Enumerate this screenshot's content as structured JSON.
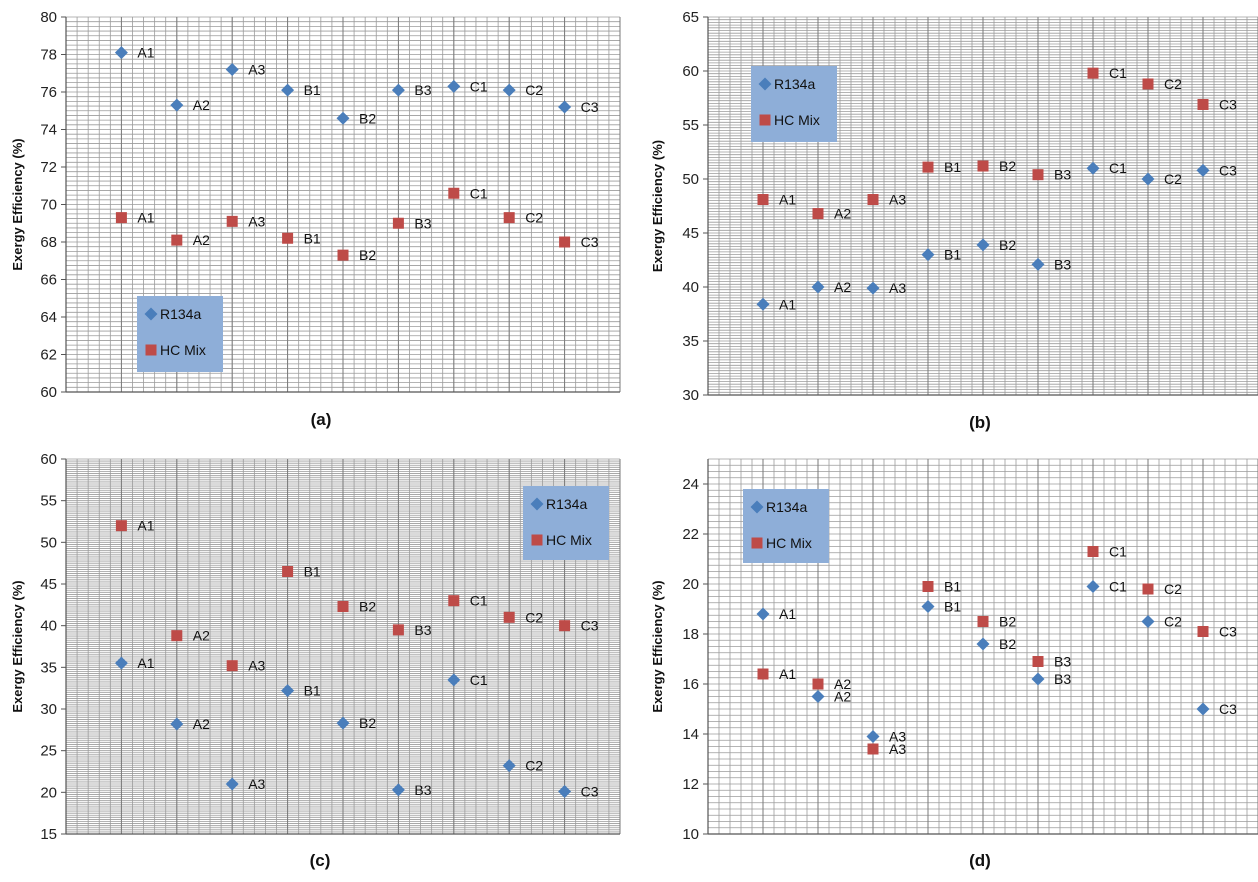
{
  "colors": {
    "r134a": "#4a7ebb",
    "hc": "#be4b48",
    "legend_bg": "#8eaed8",
    "grid": "#9b9b9b"
  },
  "chart_data": [
    {
      "type": "scatter",
      "caption": "(a)",
      "ylabel": "Exergy Efficiency  (%)",
      "ylim": [
        60,
        80
      ],
      "ytick_step": 2,
      "categories": [
        "A1",
        "A2",
        "A3",
        "B1",
        "B2",
        "B3",
        "C1",
        "C2",
        "C3"
      ],
      "legend": {
        "position": "bottom-left",
        "entries": [
          "R134a",
          "HC Mix"
        ]
      },
      "grid": true,
      "series": [
        {
          "name": "R134a",
          "marker": "diamond",
          "values": [
            78.1,
            75.3,
            77.2,
            76.1,
            74.6,
            76.1,
            76.3,
            76.1,
            75.2
          ],
          "labels": [
            "A1",
            "A2",
            "A3",
            "B1",
            "B2",
            "B3",
            "C1",
            "C2",
            "C3"
          ]
        },
        {
          "name": "HC Mix",
          "marker": "square",
          "values": [
            69.3,
            68.1,
            69.1,
            68.2,
            67.3,
            69.0,
            70.6,
            69.3,
            68.0
          ],
          "labels": [
            "A1",
            "A2",
            "A3",
            "B1",
            "B2",
            "B3",
            "C1",
            "C2",
            "C3"
          ]
        }
      ]
    },
    {
      "type": "scatter",
      "caption": "(b)",
      "ylabel": "Exergy Efficiency  (%)",
      "ylim": [
        30,
        65
      ],
      "ytick_step": 5,
      "categories": [
        "A1",
        "A2",
        "A3",
        "B1",
        "B2",
        "B3",
        "C1",
        "C2",
        "C3"
      ],
      "legend": {
        "position": "top-left",
        "entries": [
          "R134a",
          "HC Mix"
        ]
      },
      "grid": true,
      "series": [
        {
          "name": "R134a",
          "marker": "diamond",
          "values": [
            38.4,
            40.0,
            39.9,
            43.0,
            43.9,
            42.1,
            51.0,
            50.0,
            50.8
          ],
          "labels": [
            "A1",
            "A2",
            "A3",
            "B1",
            "B2",
            "B3",
            "C1",
            "C2",
            "C3"
          ]
        },
        {
          "name": "HC Mix",
          "marker": "square",
          "values": [
            48.1,
            46.8,
            48.1,
            51.1,
            51.2,
            50.4,
            59.8,
            58.8,
            56.9
          ],
          "labels": [
            "A1",
            "A2",
            "A3",
            "B1",
            "B2",
            "B3",
            "C1",
            "C2",
            "C3"
          ]
        }
      ]
    },
    {
      "type": "scatter",
      "caption": "(c)",
      "ylabel": "Exergy Efficiency  (%)",
      "ylim": [
        15,
        60
      ],
      "ytick_step": 5,
      "categories": [
        "A1",
        "A2",
        "A3",
        "B1",
        "B2",
        "B3",
        "C1",
        "C2",
        "C3"
      ],
      "legend": {
        "position": "top-right",
        "entries": [
          "R134a",
          "HC Mix"
        ]
      },
      "grid": true,
      "series": [
        {
          "name": "R134a",
          "marker": "diamond",
          "values": [
            35.5,
            28.2,
            21.0,
            32.2,
            28.3,
            20.3,
            33.5,
            23.2,
            20.1
          ],
          "labels": [
            "A1",
            "A2",
            "A3",
            "B1",
            "B2",
            "B3",
            "C1",
            "C2",
            "C3"
          ]
        },
        {
          "name": "HC Mix",
          "marker": "square",
          "values": [
            52.0,
            38.8,
            35.2,
            46.5,
            42.3,
            39.5,
            43.0,
            41.0,
            40.0
          ],
          "labels": [
            "A1",
            "A2",
            "A3",
            "B1",
            "B2",
            "B3",
            "C1",
            "C2",
            "C3"
          ]
        }
      ]
    },
    {
      "type": "scatter",
      "caption": "(d)",
      "ylabel": "Exergy Efficiency  (%)",
      "ylim": [
        10,
        25
      ],
      "ytick_step": 2,
      "ytick_max": 24,
      "categories": [
        "A1",
        "A2",
        "A3",
        "B1",
        "B2",
        "B3",
        "C1",
        "C2",
        "C3"
      ],
      "legend": {
        "position": "top-left",
        "entries": [
          "R134a",
          "HC Mix"
        ]
      },
      "grid": true,
      "series": [
        {
          "name": "R134a",
          "marker": "diamond",
          "values": [
            18.8,
            15.5,
            13.9,
            19.1,
            17.6,
            16.2,
            19.9,
            18.5,
            15.0
          ],
          "labels": [
            "A1",
            "A2",
            "A3",
            "B1",
            "B2",
            "B3",
            "C1",
            "C2",
            "C3"
          ]
        },
        {
          "name": "HC Mix",
          "marker": "square",
          "values": [
            16.4,
            16.0,
            13.4,
            19.9,
            18.5,
            16.9,
            21.3,
            19.8,
            18.1
          ],
          "labels": [
            "A1",
            "A2",
            "A3",
            "B1",
            "B2",
            "B3",
            "C1",
            "C2",
            "C3"
          ]
        }
      ]
    }
  ]
}
